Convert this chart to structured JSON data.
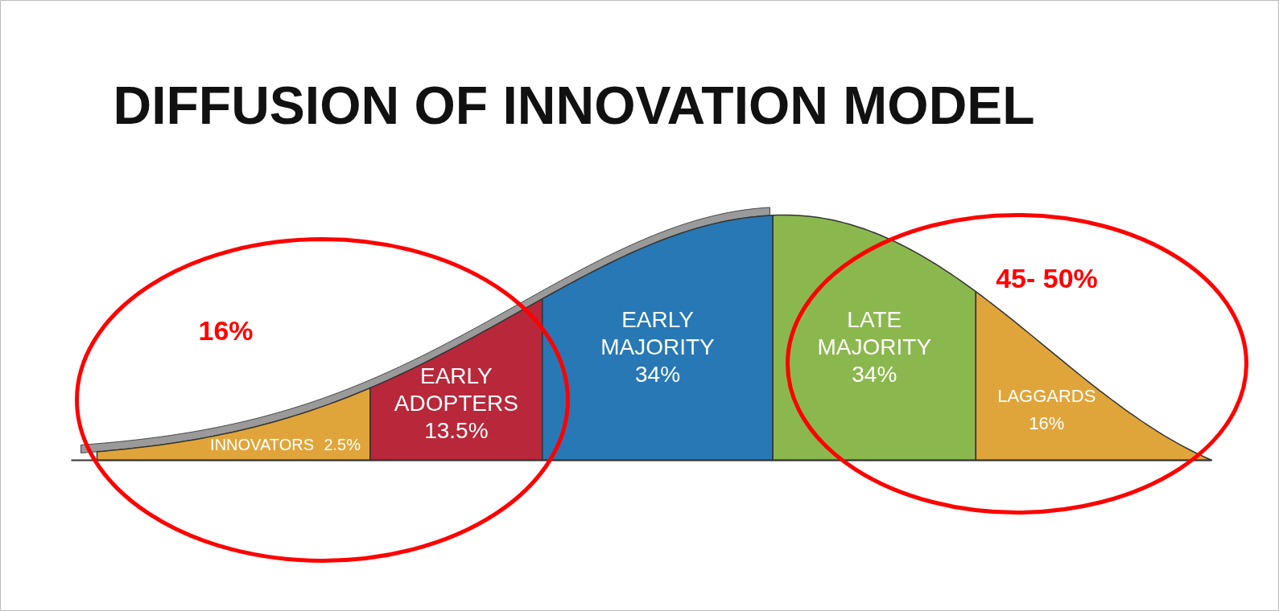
{
  "chart_data": {
    "type": "other",
    "title": "DIFFUSION OF INNOVATION MODEL",
    "categories": [
      "INNOVATORS",
      "EARLY ADOPTERS",
      "EARLY MAJORITY",
      "LATE MAJORITY",
      "LAGGARDS"
    ],
    "values": [
      2.5,
      13.5,
      34,
      34,
      16
    ],
    "value_labels": [
      "2.5%",
      "13.5%",
      "34%",
      "34%",
      "16%"
    ],
    "colors": [
      "#e0a53a",
      "#b8283a",
      "#2878b5",
      "#8bb84e",
      "#e0a53a"
    ],
    "annotations": [
      "16%",
      "45- 50%"
    ]
  }
}
